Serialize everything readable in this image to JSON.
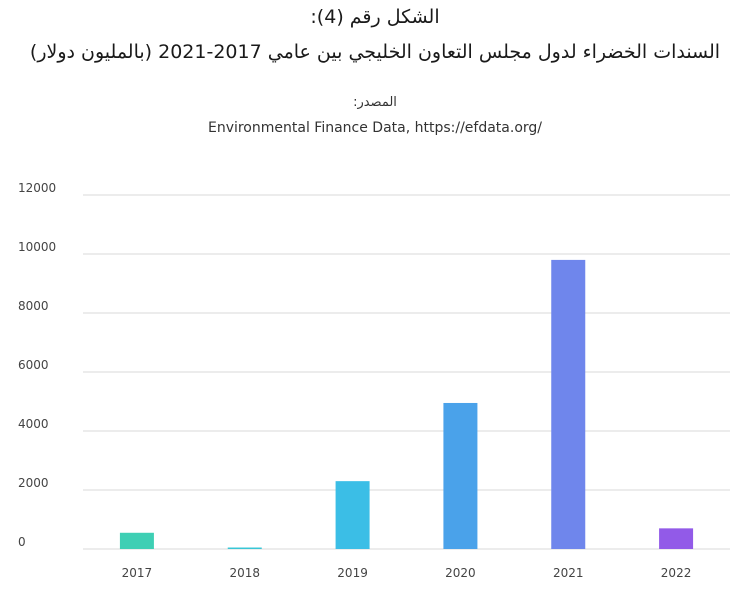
{
  "header": {
    "figure_label": "الشكل رقم (4):",
    "title": "السندات الخضراء لدول مجلس التعاون الخليجي بين عامي 2017-2021 (بالمليون دولار)",
    "source_label": "المصدر:",
    "source_text": "Environmental Finance Data, https://efdata.org/"
  },
  "chart_data": {
    "type": "bar",
    "categories": [
      "2017",
      "2018",
      "2019",
      "2020",
      "2021",
      "2022"
    ],
    "values": [
      550,
      50,
      2300,
      4950,
      9800,
      700
    ],
    "colors": [
      "#3ecfb4",
      "#38c6d6",
      "#3bbee6",
      "#4aa2ea",
      "#6f86ec",
      "#925ae8"
    ],
    "ylim": [
      0,
      12000
    ],
    "yticks": [
      0,
      2000,
      4000,
      6000,
      8000,
      10000,
      12000
    ],
    "grid": true,
    "grid_color": "#d9d9d9",
    "title": "السندات الخضراء لدول مجلس التعاون الخليجي بين عامي 2017-2021 (بالمليون دولار)",
    "xlabel": "",
    "ylabel": ""
  }
}
